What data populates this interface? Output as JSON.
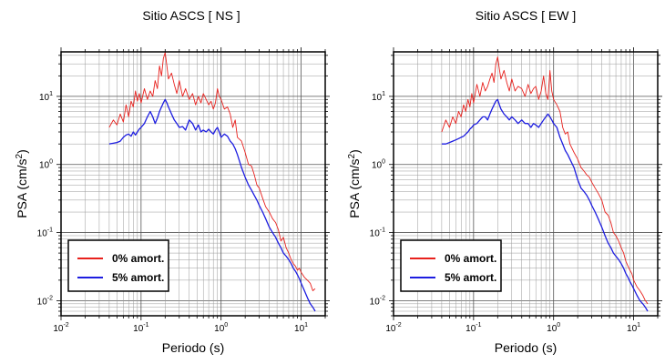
{
  "chart_data": [
    {
      "type": "line",
      "title": "Sitio ASCS [ NS ]",
      "xlabel": "Periodo (s)",
      "ylabel": "PSA (cm/s²)",
      "x_scale": "log",
      "y_scale": "log",
      "xlim": [
        0.01,
        20
      ],
      "ylim": [
        0.006,
        45
      ],
      "grid": true,
      "legend_position": "lower-left",
      "x_ticks": [
        {
          "value": 0.01,
          "base": "10",
          "exp": "-2"
        },
        {
          "value": 0.1,
          "base": "10",
          "exp": "-1"
        },
        {
          "value": 1,
          "base": "10",
          "exp": "0"
        },
        {
          "value": 10,
          "base": "10",
          "exp": "1"
        }
      ],
      "y_ticks": [
        {
          "value": 0.01,
          "base": "10",
          "exp": "-2"
        },
        {
          "value": 0.1,
          "base": "10",
          "exp": "-1"
        },
        {
          "value": 1,
          "base": "10",
          "exp": "0"
        },
        {
          "value": 10,
          "base": "10",
          "exp": "1"
        }
      ],
      "series": [
        {
          "name": "0% amort.",
          "color": "#e8211d",
          "x": [
            0.04,
            0.045,
            0.05,
            0.055,
            0.06,
            0.065,
            0.07,
            0.075,
            0.08,
            0.085,
            0.09,
            0.095,
            0.1,
            0.11,
            0.12,
            0.13,
            0.14,
            0.15,
            0.16,
            0.17,
            0.18,
            0.19,
            0.2,
            0.21,
            0.22,
            0.24,
            0.26,
            0.28,
            0.3,
            0.33,
            0.36,
            0.4,
            0.44,
            0.48,
            0.52,
            0.56,
            0.6,
            0.65,
            0.7,
            0.75,
            0.8,
            0.85,
            0.9,
            0.95,
            1.0,
            1.1,
            1.2,
            1.3,
            1.4,
            1.5,
            1.6,
            1.8,
            2.0,
            2.2,
            2.4,
            2.6,
            2.8,
            3.0,
            3.3,
            3.6,
            4.0,
            4.4,
            4.8,
            5.2,
            5.6,
            6.0,
            6.5,
            7.0,
            7.5,
            8.0,
            8.5,
            9.0,
            9.5,
            10,
            11,
            12,
            13,
            14,
            15
          ],
          "y": [
            3.5,
            4.5,
            3.8,
            5.5,
            4.2,
            7.5,
            5.0,
            8.5,
            7.0,
            12,
            8.5,
            11,
            8.0,
            13,
            9.0,
            12,
            10,
            17,
            13,
            28,
            20,
            36,
            44,
            28,
            18,
            22,
            15,
            11,
            17,
            10,
            13,
            9.0,
            11,
            7.5,
            10,
            8.0,
            11,
            9.0,
            7.5,
            8.5,
            6.5,
            8.0,
            13,
            10,
            9.0,
            6.5,
            7.0,
            5.5,
            3.5,
            4.5,
            2.5,
            2.2,
            1.5,
            1.0,
            0.95,
            0.7,
            0.5,
            0.45,
            0.32,
            0.24,
            0.2,
            0.16,
            0.14,
            0.11,
            0.075,
            0.085,
            0.06,
            0.05,
            0.04,
            0.035,
            0.032,
            0.028,
            0.03,
            0.026,
            0.022,
            0.02,
            0.018,
            0.014,
            0.015
          ]
        },
        {
          "name": "5% amort.",
          "color": "#1d1de0",
          "x": [
            0.04,
            0.045,
            0.05,
            0.055,
            0.06,
            0.065,
            0.07,
            0.075,
            0.08,
            0.085,
            0.09,
            0.095,
            0.1,
            0.11,
            0.12,
            0.13,
            0.14,
            0.15,
            0.16,
            0.17,
            0.18,
            0.19,
            0.2,
            0.21,
            0.22,
            0.24,
            0.26,
            0.28,
            0.3,
            0.33,
            0.36,
            0.4,
            0.44,
            0.48,
            0.52,
            0.56,
            0.6,
            0.65,
            0.7,
            0.75,
            0.8,
            0.85,
            0.9,
            0.95,
            1.0,
            1.1,
            1.2,
            1.3,
            1.4,
            1.5,
            1.6,
            1.8,
            2.0,
            2.2,
            2.4,
            2.6,
            2.8,
            3.0,
            3.3,
            3.6,
            4.0,
            4.4,
            4.8,
            5.2,
            5.6,
            6.0,
            6.5,
            7.0,
            7.5,
            8.0,
            8.5,
            9.0,
            9.5,
            10,
            11,
            12,
            13,
            14,
            15
          ],
          "y": [
            2.0,
            2.05,
            2.1,
            2.2,
            2.5,
            2.7,
            2.8,
            2.6,
            3.0,
            2.7,
            3.0,
            3.3,
            3.5,
            4.0,
            5.0,
            6.0,
            5.0,
            4.0,
            4.8,
            6.0,
            7.0,
            8.0,
            9.0,
            8.0,
            7.0,
            5.5,
            4.5,
            4.0,
            3.5,
            3.6,
            3.2,
            4.5,
            4.0,
            3.2,
            3.8,
            3.0,
            3.2,
            3.0,
            3.3,
            3.0,
            2.8,
            3.2,
            3.5,
            3.0,
            2.5,
            2.8,
            2.6,
            2.2,
            2.0,
            1.7,
            1.4,
            0.9,
            0.65,
            0.5,
            0.42,
            0.35,
            0.3,
            0.25,
            0.2,
            0.16,
            0.12,
            0.1,
            0.085,
            0.07,
            0.06,
            0.05,
            0.045,
            0.04,
            0.035,
            0.03,
            0.027,
            0.024,
            0.021,
            0.018,
            0.014,
            0.011,
            0.009,
            0.008,
            0.007
          ]
        }
      ]
    },
    {
      "type": "line",
      "title": "Sitio ASCS [ EW ]",
      "xlabel": "Periodo (s)",
      "ylabel": "PSA (cm/s²)",
      "x_scale": "log",
      "y_scale": "log",
      "xlim": [
        0.01,
        20
      ],
      "ylim": [
        0.006,
        45
      ],
      "grid": true,
      "legend_position": "lower-left",
      "x_ticks": [
        {
          "value": 0.01,
          "base": "10",
          "exp": "-2"
        },
        {
          "value": 0.1,
          "base": "10",
          "exp": "-1"
        },
        {
          "value": 1,
          "base": "10",
          "exp": "0"
        },
        {
          "value": 10,
          "base": "10",
          "exp": "1"
        }
      ],
      "y_ticks": [
        {
          "value": 0.01,
          "base": "10",
          "exp": "-2"
        },
        {
          "value": 0.1,
          "base": "10",
          "exp": "-1"
        },
        {
          "value": 1,
          "base": "10",
          "exp": "0"
        },
        {
          "value": 10,
          "base": "10",
          "exp": "1"
        }
      ],
      "series": [
        {
          "name": "0% amort.",
          "color": "#e8211d",
          "x": [
            0.04,
            0.045,
            0.05,
            0.055,
            0.06,
            0.065,
            0.07,
            0.075,
            0.08,
            0.085,
            0.09,
            0.095,
            0.1,
            0.11,
            0.12,
            0.13,
            0.14,
            0.15,
            0.16,
            0.17,
            0.18,
            0.19,
            0.2,
            0.21,
            0.22,
            0.24,
            0.26,
            0.28,
            0.3,
            0.33,
            0.36,
            0.4,
            0.44,
            0.48,
            0.52,
            0.56,
            0.6,
            0.65,
            0.7,
            0.75,
            0.8,
            0.85,
            0.9,
            0.95,
            1.0,
            1.1,
            1.2,
            1.3,
            1.4,
            1.5,
            1.6,
            1.8,
            2.0,
            2.2,
            2.4,
            2.6,
            2.8,
            3.0,
            3.3,
            3.6,
            4.0,
            4.4,
            4.8,
            5.2,
            5.6,
            6.0,
            6.5,
            7.0,
            7.5,
            8.0,
            8.5,
            9.0,
            9.5,
            10,
            11,
            12,
            13,
            14,
            15
          ],
          "y": [
            3.0,
            4.5,
            3.5,
            5.0,
            4.0,
            6.0,
            5.0,
            7.5,
            6.0,
            9.0,
            7.0,
            11,
            8.0,
            15,
            10,
            16,
            12,
            14,
            18,
            22,
            16,
            30,
            38,
            25,
            18,
            24,
            16,
            12,
            18,
            12,
            14,
            13,
            10,
            15,
            11,
            13,
            14,
            9.0,
            12,
            20,
            11,
            9.0,
            24,
            12,
            9.0,
            7.5,
            6.0,
            3.5,
            2.8,
            3.0,
            2.0,
            1.5,
            1.2,
            0.9,
            0.8,
            0.7,
            0.65,
            0.55,
            0.45,
            0.38,
            0.3,
            0.2,
            0.18,
            0.14,
            0.1,
            0.09,
            0.075,
            0.06,
            0.05,
            0.038,
            0.032,
            0.028,
            0.025,
            0.02,
            0.016,
            0.014,
            0.012,
            0.01,
            0.009
          ]
        },
        {
          "name": "5% amort.",
          "color": "#1d1de0",
          "x": [
            0.04,
            0.045,
            0.05,
            0.055,
            0.06,
            0.065,
            0.07,
            0.075,
            0.08,
            0.085,
            0.09,
            0.095,
            0.1,
            0.11,
            0.12,
            0.13,
            0.14,
            0.15,
            0.16,
            0.17,
            0.18,
            0.19,
            0.2,
            0.21,
            0.22,
            0.24,
            0.26,
            0.28,
            0.3,
            0.33,
            0.36,
            0.4,
            0.44,
            0.48,
            0.52,
            0.56,
            0.6,
            0.65,
            0.7,
            0.75,
            0.8,
            0.85,
            0.9,
            0.95,
            1.0,
            1.1,
            1.2,
            1.3,
            1.4,
            1.5,
            1.6,
            1.8,
            2.0,
            2.2,
            2.4,
            2.6,
            2.8,
            3.0,
            3.3,
            3.6,
            4.0,
            4.4,
            4.8,
            5.2,
            5.6,
            6.0,
            6.5,
            7.0,
            7.5,
            8.0,
            8.5,
            9.0,
            9.5,
            10,
            11,
            12,
            13,
            14,
            15
          ],
          "y": [
            2.0,
            2.0,
            2.1,
            2.2,
            2.3,
            2.4,
            2.5,
            2.6,
            2.8,
            3.0,
            3.3,
            3.5,
            3.8,
            4.0,
            4.5,
            5.0,
            5.0,
            4.5,
            5.5,
            6.5,
            7.5,
            8.5,
            9.0,
            7.5,
            6.5,
            5.5,
            5.0,
            4.5,
            5.0,
            4.5,
            4.0,
            4.5,
            4.0,
            4.0,
            3.5,
            4.0,
            3.8,
            3.5,
            4.0,
            4.5,
            5.0,
            5.5,
            5.0,
            4.5,
            4.0,
            3.5,
            2.5,
            2.0,
            1.6,
            1.4,
            1.2,
            0.9,
            0.6,
            0.45,
            0.4,
            0.35,
            0.3,
            0.25,
            0.2,
            0.16,
            0.12,
            0.09,
            0.07,
            0.06,
            0.05,
            0.045,
            0.04,
            0.035,
            0.03,
            0.025,
            0.022,
            0.019,
            0.017,
            0.015,
            0.012,
            0.01,
            0.009,
            0.008,
            0.007
          ]
        }
      ]
    }
  ]
}
